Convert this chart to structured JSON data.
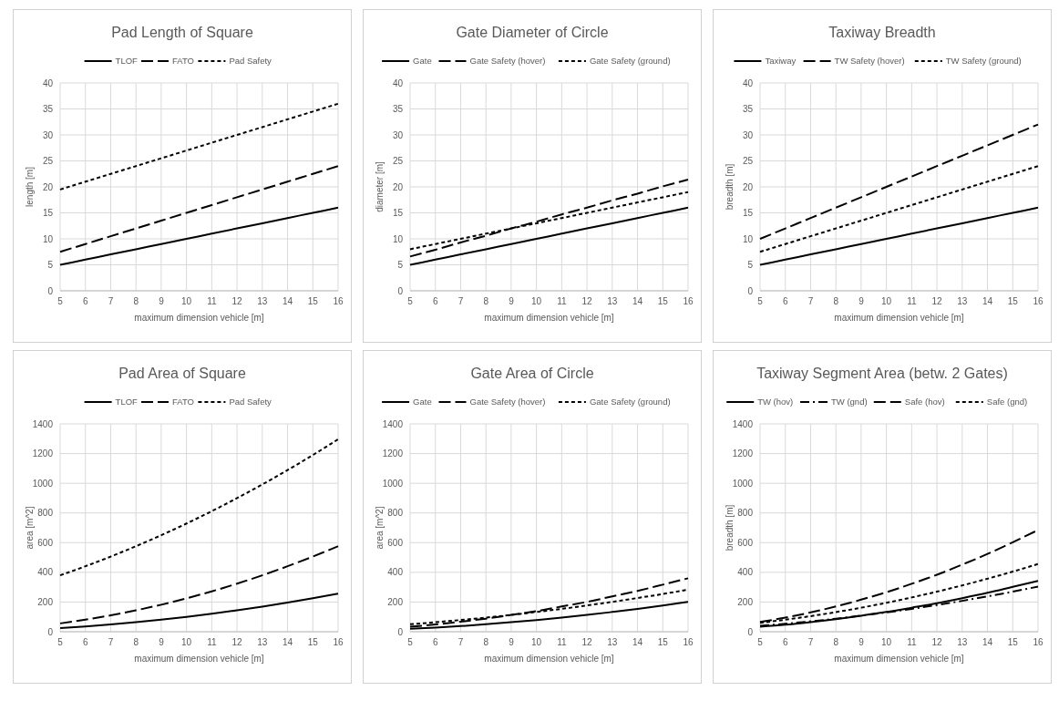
{
  "chart_data": [
    {
      "type": "line",
      "title": "Pad Length of Square",
      "xlabel": "maximum dimension vehicle [m]",
      "ylabel": "length [m]",
      "x": [
        5,
        6,
        7,
        8,
        9,
        10,
        11,
        12,
        13,
        14,
        15,
        16
      ],
      "xlim": [
        5,
        16
      ],
      "xticks": [
        5,
        6,
        7,
        8,
        9,
        10,
        11,
        12,
        13,
        14,
        15,
        16
      ],
      "ylim": [
        0,
        40
      ],
      "yticks": [
        0,
        5,
        10,
        15,
        20,
        25,
        30,
        35,
        40
      ],
      "grid": true,
      "legend": "top",
      "series": [
        {
          "name": "TLOF",
          "color": "#000000",
          "line_style": "solid",
          "values": [
            5,
            6,
            7,
            8,
            9,
            10,
            11,
            12,
            13,
            14,
            15,
            16
          ]
        },
        {
          "name": "FATO",
          "color": "#000000",
          "line_style": "dashed",
          "values": [
            7.5,
            9,
            10.5,
            12,
            13.5,
            15,
            16.5,
            18,
            19.5,
            21,
            22.5,
            24
          ]
        },
        {
          "name": "Pad Safety",
          "color": "#000000",
          "line_style": "dotted",
          "values": [
            19.5,
            21,
            22.5,
            24,
            25.5,
            27,
            28.5,
            30,
            31.5,
            33,
            34.5,
            36
          ]
        }
      ]
    },
    {
      "type": "line",
      "title": "Gate Diameter of Circle",
      "xlabel": "maximum dimension vehicle [m]",
      "ylabel": "diameter [m]",
      "x": [
        5,
        6,
        7,
        8,
        9,
        10,
        11,
        12,
        13,
        14,
        15,
        16
      ],
      "xlim": [
        5,
        16
      ],
      "xticks": [
        5,
        6,
        7,
        8,
        9,
        10,
        11,
        12,
        13,
        14,
        15,
        16
      ],
      "ylim": [
        0,
        40
      ],
      "yticks": [
        0,
        5,
        10,
        15,
        20,
        25,
        30,
        35,
        40
      ],
      "grid": true,
      "legend": "top",
      "series": [
        {
          "name": "Gate",
          "color": "#000000",
          "line_style": "solid",
          "values": [
            5,
            6,
            7,
            8,
            9,
            10,
            11,
            12,
            13,
            14,
            15,
            16
          ]
        },
        {
          "name": "Gate Safety (hover)",
          "color": "#000000",
          "line_style": "dashed",
          "values": [
            6.6,
            7.9,
            9.3,
            10.6,
            12,
            13.3,
            14.7,
            16,
            17.4,
            18.7,
            20.1,
            21.4
          ]
        },
        {
          "name": "Gate Safety (ground)",
          "color": "#000000",
          "line_style": "dotted",
          "values": [
            8,
            9,
            10,
            11,
            12,
            13,
            14,
            15,
            16,
            17,
            18,
            19
          ]
        }
      ]
    },
    {
      "type": "line",
      "title": "Taxiway Breadth",
      "xlabel": "maximum dimension vehicle [m]",
      "ylabel": "breadth [m]",
      "x": [
        5,
        6,
        7,
        8,
        9,
        10,
        11,
        12,
        13,
        14,
        15,
        16
      ],
      "xlim": [
        5,
        16
      ],
      "xticks": [
        5,
        6,
        7,
        8,
        9,
        10,
        11,
        12,
        13,
        14,
        15,
        16
      ],
      "ylim": [
        0,
        40
      ],
      "yticks": [
        0,
        5,
        10,
        15,
        20,
        25,
        30,
        35,
        40
      ],
      "grid": true,
      "legend": "top",
      "series": [
        {
          "name": "Taxiway",
          "color": "#000000",
          "line_style": "solid",
          "values": [
            5,
            6,
            7,
            8,
            9,
            10,
            11,
            12,
            13,
            14,
            15,
            16
          ]
        },
        {
          "name": "TW Safety (hover)",
          "color": "#000000",
          "line_style": "dashed",
          "values": [
            10,
            12,
            14,
            16,
            18,
            20,
            22,
            24,
            26,
            28,
            30,
            32
          ]
        },
        {
          "name": "TW Safety (ground)",
          "color": "#000000",
          "line_style": "dotted",
          "values": [
            7.5,
            9,
            10.5,
            12,
            13.5,
            15,
            16.5,
            18,
            19.5,
            21,
            22.5,
            24
          ]
        }
      ]
    },
    {
      "type": "line",
      "title": "Pad Area of Square",
      "xlabel": "maximum dimension vehicle [m]",
      "ylabel": "area [m^2]",
      "x": [
        5,
        6,
        7,
        8,
        9,
        10,
        11,
        12,
        13,
        14,
        15,
        16
      ],
      "xlim": [
        5,
        16
      ],
      "xticks": [
        5,
        6,
        7,
        8,
        9,
        10,
        11,
        12,
        13,
        14,
        15,
        16
      ],
      "ylim": [
        0,
        1400
      ],
      "yticks": [
        0,
        200,
        400,
        600,
        800,
        1000,
        1200,
        1400
      ],
      "grid": true,
      "legend": "top",
      "series": [
        {
          "name": "TLOF",
          "color": "#000000",
          "line_style": "solid",
          "values": [
            25,
            36,
            49,
            64,
            81,
            100,
            121,
            144,
            169,
            196,
            225,
            256
          ]
        },
        {
          "name": "FATO",
          "color": "#000000",
          "line_style": "dashed",
          "values": [
            56,
            81,
            110,
            144,
            182,
            225,
            272,
            324,
            380,
            441,
            506,
            576
          ]
        },
        {
          "name": "Pad Safety",
          "color": "#000000",
          "line_style": "dotted",
          "values": [
            380,
            441,
            506,
            576,
            650,
            729,
            812,
            900,
            992,
            1089,
            1190,
            1296
          ]
        }
      ]
    },
    {
      "type": "line",
      "title": "Gate Area of Circle",
      "xlabel": "maximum dimension vehicle [m]",
      "ylabel": "area [m^2]",
      "x": [
        5,
        6,
        7,
        8,
        9,
        10,
        11,
        12,
        13,
        14,
        15,
        16
      ],
      "xlim": [
        5,
        16
      ],
      "xticks": [
        5,
        6,
        7,
        8,
        9,
        10,
        11,
        12,
        13,
        14,
        15,
        16
      ],
      "ylim": [
        0,
        1400
      ],
      "yticks": [
        0,
        200,
        400,
        600,
        800,
        1000,
        1200,
        1400
      ],
      "grid": true,
      "legend": "top",
      "series": [
        {
          "name": "Gate",
          "color": "#000000",
          "line_style": "solid",
          "values": [
            20,
            28,
            38,
            50,
            64,
            79,
            95,
            113,
            133,
            154,
            177,
            201
          ]
        },
        {
          "name": "Gate Safety (hover)",
          "color": "#000000",
          "line_style": "dashed",
          "values": [
            34,
            49,
            68,
            88,
            113,
            139,
            170,
            201,
            238,
            275,
            317,
            360
          ]
        },
        {
          "name": "Gate Safety (ground)",
          "color": "#000000",
          "line_style": "dotted",
          "values": [
            50,
            64,
            79,
            95,
            113,
            133,
            154,
            177,
            201,
            227,
            254,
            284
          ]
        }
      ]
    },
    {
      "type": "line",
      "title": "Taxiway Segment Area (betw. 2 Gates)",
      "xlabel": "maximum dimension vehicle [m]",
      "ylabel": "breadth [m]",
      "x": [
        5,
        6,
        7,
        8,
        9,
        10,
        11,
        12,
        13,
        14,
        15,
        16
      ],
      "xlim": [
        5,
        16
      ],
      "xticks": [
        5,
        6,
        7,
        8,
        9,
        10,
        11,
        12,
        13,
        14,
        15,
        16
      ],
      "ylim": [
        0,
        1400
      ],
      "yticks": [
        0,
        200,
        400,
        600,
        800,
        1000,
        1200,
        1400
      ],
      "grid": true,
      "legend": "top",
      "series": [
        {
          "name": "TW (hov)",
          "color": "#000000",
          "line_style": "solid",
          "values": [
            33,
            47,
            65,
            85,
            108,
            133,
            162,
            192,
            226,
            262,
            302,
            342
          ]
        },
        {
          "name": "TW (gnd)",
          "color": "#000000",
          "line_style": "dashdot",
          "values": [
            40,
            54,
            70,
            88,
            108,
            130,
            154,
            180,
            208,
            238,
            270,
            304
          ]
        },
        {
          "name": "Safe (hov)",
          "color": "#000000",
          "line_style": "dashed",
          "values": [
            66,
            95,
            130,
            170,
            216,
            266,
            323,
            384,
            452,
            524,
            603,
            685
          ]
        },
        {
          "name": "Safe (gnd)",
          "color": "#000000",
          "line_style": "dotted",
          "values": [
            60,
            81,
            105,
            132,
            162,
            195,
            231,
            270,
            312,
            357,
            405,
            456
          ]
        }
      ]
    }
  ]
}
